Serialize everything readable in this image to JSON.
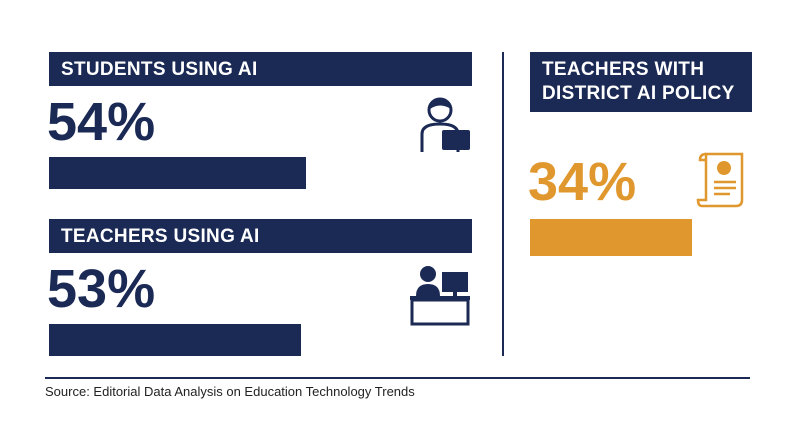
{
  "panels": [
    {
      "title": "STUDENTS USING AI",
      "value": 54,
      "value_label": "54%",
      "color": "#1b2a55"
    },
    {
      "title": "TEACHERS USING AI",
      "value": 53,
      "value_label": "53%",
      "color": "#1b2a55"
    },
    {
      "title": "TEACHERS WITH DISTRICT AI POLICY",
      "value": 34,
      "value_label": "34%",
      "color": "#e0982e"
    }
  ],
  "source": "Source: Editorial Data Analysis on Education Technology Trends"
}
